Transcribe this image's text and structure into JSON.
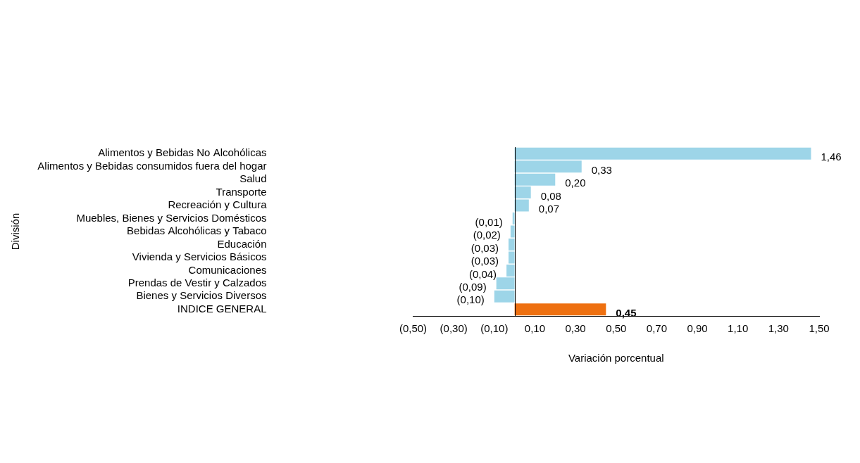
{
  "chart_data": {
    "type": "bar",
    "orientation": "horizontal",
    "categories": [
      "Alimentos y Bebidas No Alcohólicas",
      "Alimentos y Bebidas consumidos fuera del hogar",
      "Salud",
      "Transporte",
      "Recreación y Cultura",
      "Muebles, Bienes y Servicios Domésticos",
      "Bebidas Alcohólicas y Tabaco",
      "Educación",
      "Vivienda y Servicios Básicos",
      "Comunicaciones",
      "Prendas de Vestir y Calzados",
      "Bienes y Servicios Diversos",
      "INDICE GENERAL"
    ],
    "values": [
      1.46,
      0.33,
      0.2,
      0.08,
      0.07,
      -0.01,
      -0.02,
      -0.03,
      -0.03,
      -0.04,
      -0.09,
      -0.1,
      0.45
    ],
    "value_labels": [
      "1,46",
      "0,33",
      "0,20",
      "0,08",
      "0,07",
      "(0,01)",
      "(0,02)",
      "(0,03)",
      "(0,03)",
      "(0,04)",
      "(0,09)",
      "(0,10)",
      "0,45"
    ],
    "colors": [
      "#9dd5e8",
      "#9dd5e8",
      "#9dd5e8",
      "#9dd5e8",
      "#9dd5e8",
      "#9dd5e8",
      "#9dd5e8",
      "#9dd5e8",
      "#9dd5e8",
      "#9dd5e8",
      "#9dd5e8",
      "#9dd5e8",
      "#ee7010"
    ],
    "data_labels": true,
    "x_label": "Variación porcentual",
    "y_label": "División",
    "xlim": [
      -0.5,
      1.5
    ],
    "xticks": [
      {
        "value": -0.5,
        "label": "(0,50)"
      },
      {
        "value": -0.3,
        "label": "(0,30)"
      },
      {
        "value": -0.1,
        "label": "(0,10)"
      },
      {
        "value": 0.1,
        "label": "0,10"
      },
      {
        "value": 0.3,
        "label": "0,30"
      },
      {
        "value": 0.5,
        "label": "0,50"
      },
      {
        "value": 0.7,
        "label": "0,70"
      },
      {
        "value": 0.9,
        "label": "0,90"
      },
      {
        "value": 1.1,
        "label": "1,10"
      },
      {
        "value": 1.3,
        "label": "1,30"
      },
      {
        "value": 1.5,
        "label": "1,50"
      }
    ],
    "grid": false
  }
}
